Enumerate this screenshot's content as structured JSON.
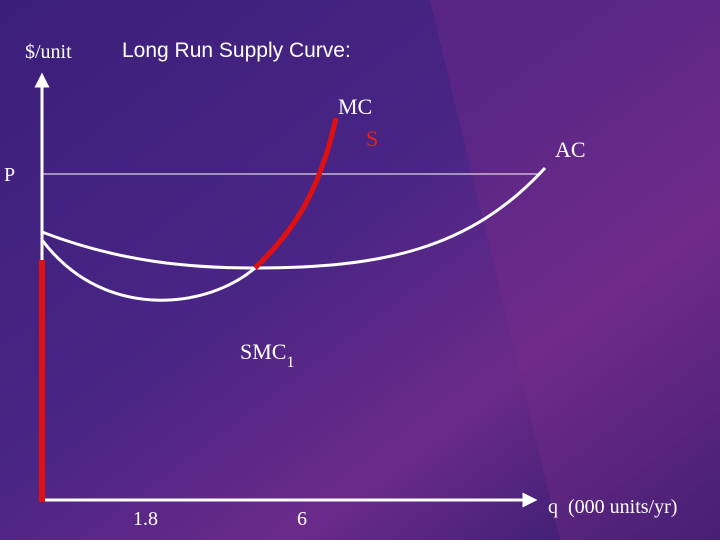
{
  "title": "Long Run Supply Curve:",
  "y_axis_label": "$/unit",
  "x_axis_label": "q  (000 units/yr)",
  "price_label": "P",
  "curves": {
    "mc": "MC",
    "supply": "S",
    "ac": "AC",
    "smc": {
      "text": "SMC",
      "subscript": "1"
    }
  },
  "x_ticks": [
    "1.8",
    "6"
  ]
}
